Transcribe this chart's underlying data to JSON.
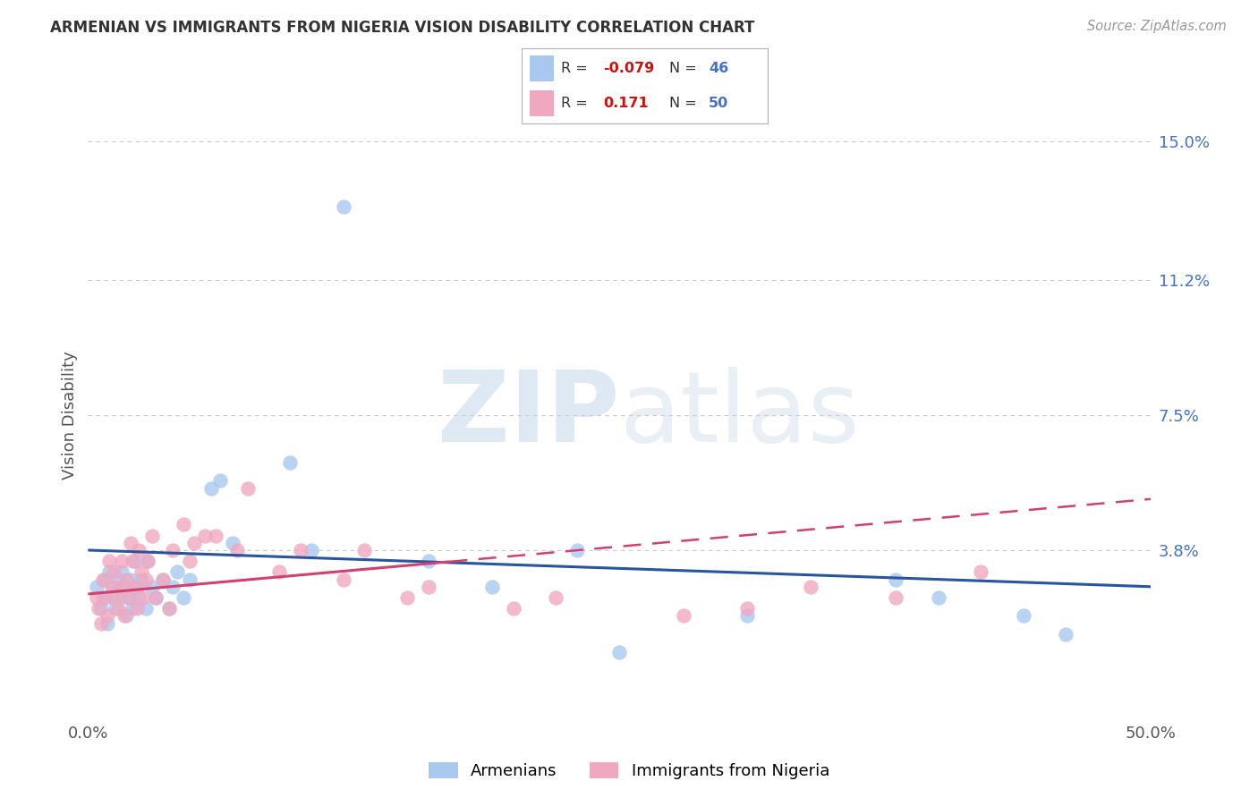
{
  "title": "ARMENIAN VS IMMIGRANTS FROM NIGERIA VISION DISABILITY CORRELATION CHART",
  "source": "Source: ZipAtlas.com",
  "ylabel": "Vision Disability",
  "xlim": [
    0.0,
    0.5
  ],
  "ylim": [
    -0.008,
    0.158
  ],
  "yticks": [
    0.0,
    0.038,
    0.075,
    0.112,
    0.15
  ],
  "ytick_labels": [
    "",
    "3.8%",
    "7.5%",
    "11.2%",
    "15.0%"
  ],
  "xticks": [
    0.0,
    0.1,
    0.2,
    0.3,
    0.4,
    0.5
  ],
  "xtick_labels": [
    "0.0%",
    "",
    "",
    "",
    "",
    "50.0%"
  ],
  "r_armenian": -0.079,
  "n_armenian": 46,
  "r_nigeria": 0.171,
  "n_nigeria": 50,
  "blue_color": "#a8c8f0",
  "pink_color": "#f0a8c0",
  "blue_line_color": "#2855a0",
  "pink_line_color": "#d04070",
  "armenian_points": [
    [
      0.004,
      0.028
    ],
    [
      0.006,
      0.022
    ],
    [
      0.007,
      0.025
    ],
    [
      0.008,
      0.03
    ],
    [
      0.009,
      0.018
    ],
    [
      0.01,
      0.032
    ],
    [
      0.011,
      0.025
    ],
    [
      0.012,
      0.028
    ],
    [
      0.013,
      0.022
    ],
    [
      0.014,
      0.03
    ],
    [
      0.015,
      0.025
    ],
    [
      0.016,
      0.032
    ],
    [
      0.017,
      0.028
    ],
    [
      0.018,
      0.02
    ],
    [
      0.019,
      0.025
    ],
    [
      0.02,
      0.03
    ],
    [
      0.021,
      0.022
    ],
    [
      0.022,
      0.035
    ],
    [
      0.023,
      0.028
    ],
    [
      0.024,
      0.025
    ],
    [
      0.025,
      0.03
    ],
    [
      0.027,
      0.022
    ],
    [
      0.028,
      0.035
    ],
    [
      0.03,
      0.028
    ],
    [
      0.032,
      0.025
    ],
    [
      0.035,
      0.03
    ],
    [
      0.038,
      0.022
    ],
    [
      0.04,
      0.028
    ],
    [
      0.042,
      0.032
    ],
    [
      0.045,
      0.025
    ],
    [
      0.048,
      0.03
    ],
    [
      0.058,
      0.055
    ],
    [
      0.062,
      0.057
    ],
    [
      0.068,
      0.04
    ],
    [
      0.095,
      0.062
    ],
    [
      0.105,
      0.038
    ],
    [
      0.12,
      0.132
    ],
    [
      0.16,
      0.035
    ],
    [
      0.19,
      0.028
    ],
    [
      0.23,
      0.038
    ],
    [
      0.25,
      0.01
    ],
    [
      0.31,
      0.02
    ],
    [
      0.38,
      0.03
    ],
    [
      0.4,
      0.025
    ],
    [
      0.44,
      0.02
    ],
    [
      0.46,
      0.015
    ]
  ],
  "nigeria_points": [
    [
      0.004,
      0.025
    ],
    [
      0.005,
      0.022
    ],
    [
      0.006,
      0.018
    ],
    [
      0.007,
      0.03
    ],
    [
      0.008,
      0.025
    ],
    [
      0.009,
      0.02
    ],
    [
      0.01,
      0.035
    ],
    [
      0.011,
      0.028
    ],
    [
      0.012,
      0.032
    ],
    [
      0.013,
      0.025
    ],
    [
      0.014,
      0.022
    ],
    [
      0.015,
      0.028
    ],
    [
      0.016,
      0.035
    ],
    [
      0.017,
      0.02
    ],
    [
      0.018,
      0.03
    ],
    [
      0.019,
      0.025
    ],
    [
      0.02,
      0.04
    ],
    [
      0.021,
      0.035
    ],
    [
      0.022,
      0.028
    ],
    [
      0.023,
      0.022
    ],
    [
      0.024,
      0.038
    ],
    [
      0.025,
      0.032
    ],
    [
      0.026,
      0.025
    ],
    [
      0.027,
      0.03
    ],
    [
      0.028,
      0.035
    ],
    [
      0.03,
      0.042
    ],
    [
      0.032,
      0.025
    ],
    [
      0.035,
      0.03
    ],
    [
      0.038,
      0.022
    ],
    [
      0.04,
      0.038
    ],
    [
      0.045,
      0.045
    ],
    [
      0.048,
      0.035
    ],
    [
      0.05,
      0.04
    ],
    [
      0.055,
      0.042
    ],
    [
      0.06,
      0.042
    ],
    [
      0.07,
      0.038
    ],
    [
      0.075,
      0.055
    ],
    [
      0.09,
      0.032
    ],
    [
      0.1,
      0.038
    ],
    [
      0.12,
      0.03
    ],
    [
      0.13,
      0.038
    ],
    [
      0.15,
      0.025
    ],
    [
      0.16,
      0.028
    ],
    [
      0.2,
      0.022
    ],
    [
      0.22,
      0.025
    ],
    [
      0.28,
      0.02
    ],
    [
      0.31,
      0.022
    ],
    [
      0.34,
      0.028
    ],
    [
      0.38,
      0.025
    ],
    [
      0.42,
      0.032
    ]
  ],
  "background_color": "#ffffff",
  "grid_color": "#c8c8c8"
}
